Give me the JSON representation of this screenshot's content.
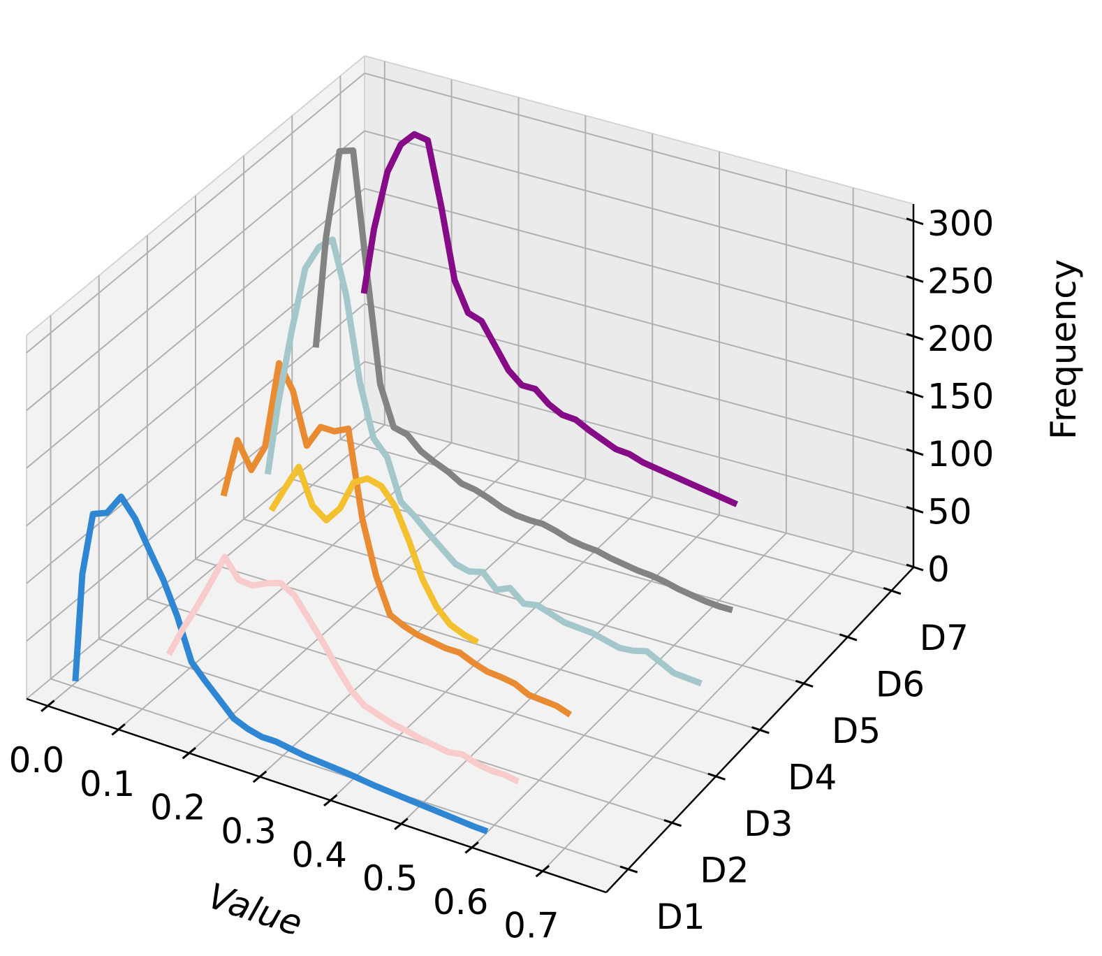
{
  "chart_data": {
    "type": "line",
    "projection": "3d",
    "title": "",
    "xlabel": "Value",
    "ylabel": "",
    "zlabel": "Frequency",
    "x_ticks": [
      "0.0",
      "0.1",
      "0.2",
      "0.3",
      "0.4",
      "0.5",
      "0.6",
      "0.7"
    ],
    "z_ticks": [
      "0",
      "50",
      "100",
      "150",
      "200",
      "250",
      "300"
    ],
    "categories": [
      "D1",
      "D2",
      "D3",
      "D4",
      "D5",
      "D6",
      "D7"
    ],
    "xlim": [
      -0.03,
      0.79
    ],
    "zlim": [
      0,
      315
    ],
    "grid": true,
    "series": [
      {
        "name": "D1",
        "color": "#2f86d3",
        "x": [
          0.005,
          0.015,
          0.03,
          0.05,
          0.07,
          0.09,
          0.11,
          0.13,
          0.15,
          0.17,
          0.19,
          0.21,
          0.23,
          0.25,
          0.27,
          0.29,
          0.31,
          0.33,
          0.35,
          0.37,
          0.39,
          0.41,
          0.43,
          0.45,
          0.47,
          0.49,
          0.51,
          0.53,
          0.55,
          0.57,
          0.59
        ],
        "y": [
          5,
          100,
          155,
          160,
          178,
          163,
          140,
          118,
          90,
          55,
          42,
          30,
          18,
          13,
          10,
          10,
          8,
          6,
          5,
          4,
          3,
          1.5,
          0,
          -1,
          -2,
          -3,
          -4,
          -5,
          -6,
          -7,
          -7.5
        ]
      },
      {
        "name": "D2",
        "color": "#f7cccb",
        "x": [
          0.07,
          0.09,
          0.11,
          0.13,
          0.15,
          0.17,
          0.19,
          0.21,
          0.23,
          0.25,
          0.27,
          0.29,
          0.31,
          0.33,
          0.35,
          0.37,
          0.39,
          0.41,
          0.43,
          0.45,
          0.47,
          0.49,
          0.51,
          0.53,
          0.55,
          0.57
        ],
        "y": [
          6,
          32,
          55,
          80,
          106,
          90,
          89,
          95,
          99,
          92,
          76,
          60,
          42,
          26,
          16,
          12,
          8,
          6,
          3,
          1,
          -1,
          1,
          -3,
          -5,
          -5,
          -7
        ]
      },
      {
        "name": "D3",
        "color": "#e88b32",
        "x": [
          0.08,
          0.1,
          0.12,
          0.14,
          0.16,
          0.18,
          0.2,
          0.22,
          0.24,
          0.26,
          0.28,
          0.3,
          0.32,
          0.34,
          0.36,
          0.38,
          0.4,
          0.42,
          0.44,
          0.46,
          0.48,
          0.5,
          0.52,
          0.54,
          0.56,
          0.58
        ],
        "y": [
          110,
          162,
          140,
          164,
          240,
          220,
          176,
          196,
          196,
          202,
          128,
          82,
          52,
          46,
          42,
          40,
          38,
          38,
          33,
          29,
          28,
          26,
          20,
          19,
          18,
          14
        ]
      },
      {
        "name": "D4",
        "color": "#f3c12f",
        "x": [
          0.08,
          0.1,
          0.12,
          0.14,
          0.16,
          0.18,
          0.2,
          0.22,
          0.24,
          0.26,
          0.28,
          0.3,
          0.32,
          0.34,
          0.36,
          0.38
        ],
        "y": [
          62,
          85,
          107,
          77,
          68,
          82,
          108,
          115,
          112,
          98,
          72,
          42,
          22,
          10,
          5,
          2
        ]
      },
      {
        "name": "D5",
        "color": "#a3c7ca",
        "x": [
          0.005,
          0.02,
          0.04,
          0.06,
          0.08,
          0.1,
          0.12,
          0.14,
          0.16,
          0.18,
          0.2,
          0.22,
          0.24,
          0.26,
          0.28,
          0.3,
          0.32,
          0.34,
          0.36,
          0.38,
          0.4,
          0.42,
          0.44,
          0.46,
          0.48,
          0.5,
          0.52,
          0.54,
          0.56,
          0.58,
          0.6,
          0.62,
          0.64
        ],
        "y": [
          45,
          108,
          175,
          233,
          255,
          265,
          220,
          148,
          103,
          90,
          55,
          46,
          35,
          25,
          15,
          12,
          15,
          3,
          8,
          -2,
          0,
          -4,
          -8,
          -9,
          -10,
          -13,
          -16,
          -15,
          -12,
          -18,
          -24,
          -25,
          -26
        ]
      },
      {
        "name": "D6",
        "color": "#838383",
        "x": [
          0.005,
          0.02,
          0.04,
          0.06,
          0.08,
          0.1,
          0.12,
          0.14,
          0.16,
          0.18,
          0.2,
          0.22,
          0.24,
          0.26,
          0.28,
          0.3,
          0.32,
          0.34,
          0.36,
          0.38,
          0.4,
          0.42,
          0.44,
          0.46,
          0.48,
          0.5,
          0.52,
          0.54,
          0.56,
          0.58,
          0.6,
          0.62
        ],
        "y": [
          120,
          218,
          296,
          300,
          200,
          104,
          70,
          67,
          56,
          50,
          45,
          38,
          36,
          32,
          27,
          24,
          23,
          23,
          20,
          16,
          14,
          13,
          10,
          8,
          6,
          5,
          3,
          0,
          -2,
          -4,
          -5,
          -5
        ]
      },
      {
        "name": "D7",
        "color": "#850b87",
        "x": [
          0.005,
          0.02,
          0.04,
          0.06,
          0.08,
          0.1,
          0.12,
          0.14,
          0.16,
          0.18,
          0.2,
          0.22,
          0.24,
          0.26,
          0.28,
          0.3,
          0.32,
          0.34,
          0.36,
          0.38,
          0.4,
          0.42,
          0.44,
          0.46,
          0.48,
          0.5,
          0.52,
          0.54,
          0.56
        ],
        "y": [
          132,
          190,
          243,
          270,
          282,
          280,
          226,
          165,
          140,
          136,
          118,
          100,
          90,
          90,
          80,
          74,
          73,
          67,
          62,
          57,
          56,
          52,
          50,
          48,
          46,
          44,
          42,
          40,
          38
        ]
      }
    ]
  }
}
